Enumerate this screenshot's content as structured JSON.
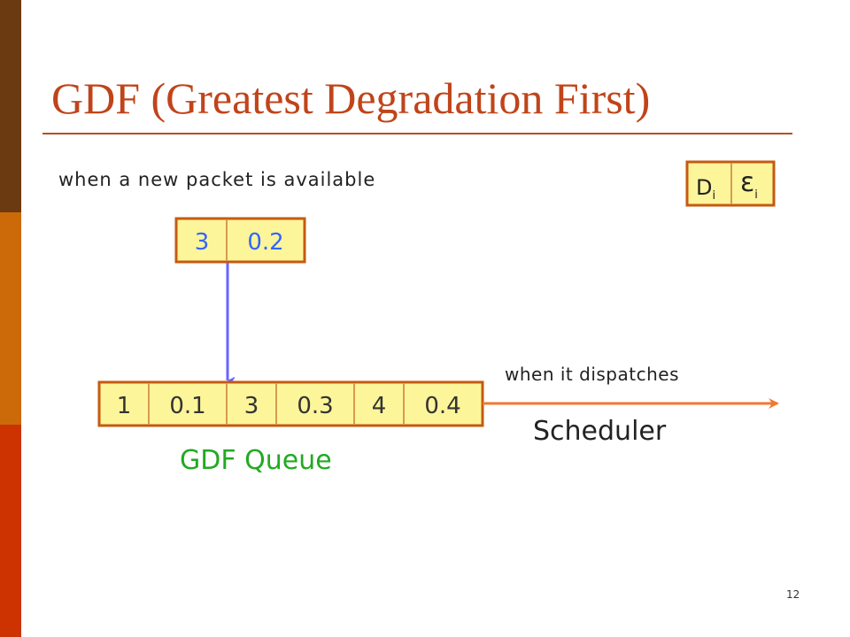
{
  "title": "GDF (Greatest Degradation First)",
  "new_packet_caption": "when a new packet is available",
  "legend": {
    "d": "D",
    "d_sub": "i",
    "e": "ε",
    "e_sub": "i"
  },
  "new_packet": [
    "3",
    "0.2"
  ],
  "queue": {
    "cells": [
      [
        "1",
        "0.1"
      ],
      [
        "3",
        "0.3"
      ],
      [
        "4",
        "0.4"
      ]
    ],
    "label": "GDF Queue"
  },
  "dispatch_caption": "when it dispatches",
  "scheduler": "Scheduler",
  "page_number": "12"
}
